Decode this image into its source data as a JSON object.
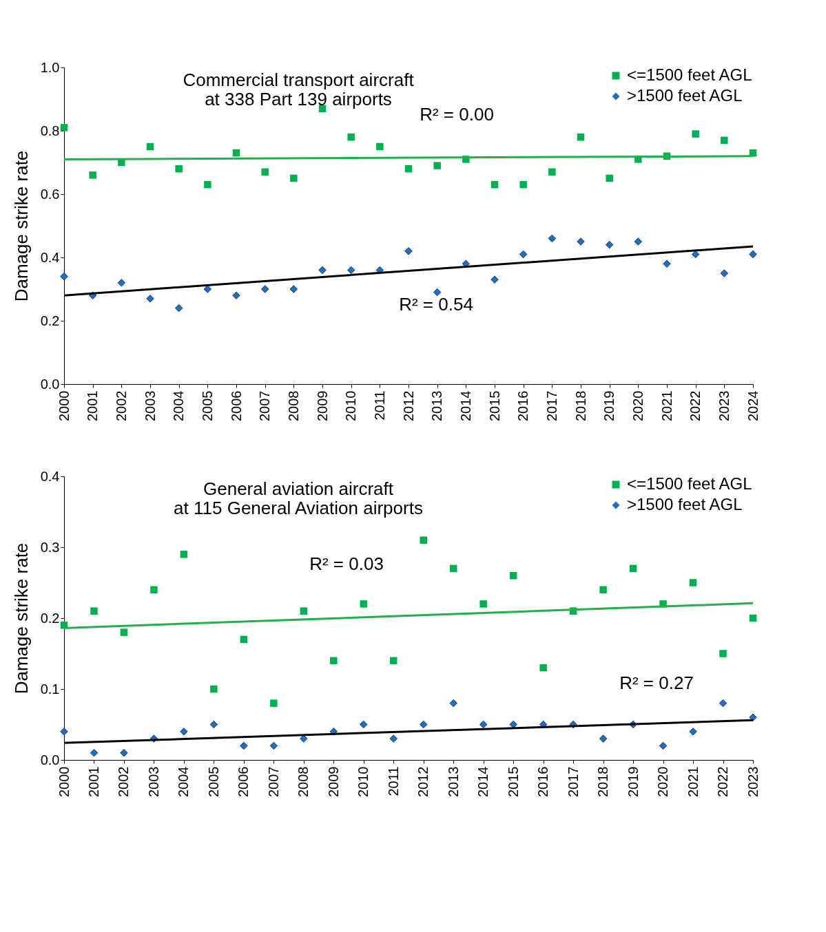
{
  "chart_data": [
    {
      "type": "scatter",
      "title": [
        "Commercial transport aircraft",
        "at 338 Part 139 airports"
      ],
      "ylabel": "Damage strike rate",
      "x": [
        2000,
        2001,
        2002,
        2003,
        2004,
        2005,
        2006,
        2007,
        2008,
        2009,
        2010,
        2011,
        2012,
        2013,
        2014,
        2015,
        2016,
        2017,
        2018,
        2019,
        2020,
        2021,
        2022,
        2023,
        2024
      ],
      "series": [
        {
          "name": "<=1500 feet AGL",
          "color": "#00b050",
          "marker": "square",
          "values": [
            0.81,
            0.66,
            0.7,
            0.75,
            0.68,
            0.63,
            0.73,
            0.67,
            0.65,
            0.87,
            0.78,
            0.75,
            0.68,
            0.69,
            0.71,
            0.63,
            0.63,
            0.67,
            0.78,
            0.65,
            0.71,
            0.72,
            0.79,
            0.77,
            0.73
          ]
        },
        {
          "name": ">1500 feet AGL",
          "color": "#1f6fbf",
          "marker": "diamond",
          "values": [
            0.34,
            0.28,
            0.32,
            0.27,
            0.24,
            0.3,
            0.28,
            0.3,
            0.3,
            0.36,
            0.36,
            0.36,
            0.42,
            0.29,
            0.38,
            0.33,
            0.41,
            0.46,
            0.45,
            0.44,
            0.45,
            0.38,
            0.41,
            0.35,
            0.41
          ]
        },
        {
          "type": "line",
          "color": "#22b14c",
          "x": [
            2000,
            2024
          ],
          "values": [
            0.71,
            0.72
          ]
        },
        {
          "type": "line",
          "color": "#000000",
          "x": [
            2000,
            2024
          ],
          "values": [
            0.28,
            0.435
          ]
        }
      ],
      "xlim": [
        2000,
        2024
      ],
      "xticks": [
        2000,
        2001,
        2002,
        2003,
        2004,
        2005,
        2006,
        2007,
        2008,
        2009,
        2010,
        2011,
        2012,
        2013,
        2014,
        2015,
        2016,
        2017,
        2018,
        2019,
        2020,
        2021,
        2022,
        2023,
        2024
      ],
      "ylim": [
        0,
        1
      ],
      "yticks": [
        {
          "value": 0,
          "label": "0.0"
        },
        {
          "value": 0.2,
          "label": "0.2"
        },
        {
          "value": 0.4,
          "label": "0.4"
        },
        {
          "value": 0.6,
          "label": "0.6"
        },
        {
          "value": 0.8,
          "label": "0.8"
        },
        {
          "value": 1,
          "label": "1.0"
        }
      ],
      "annotations": [
        "R² = 0.00",
        "R² = 0.54"
      ],
      "legend": "top right",
      "grid": false
    },
    {
      "type": "scatter",
      "title": [
        "General aviation aircraft",
        "at 115 General Aviation airports"
      ],
      "ylabel": "Damage strike rate",
      "x": [
        2000,
        2001,
        2002,
        2003,
        2004,
        2005,
        2006,
        2007,
        2008,
        2009,
        2010,
        2011,
        2012,
        2013,
        2014,
        2015,
        2016,
        2017,
        2018,
        2019,
        2020,
        2021,
        2022,
        2023
      ],
      "series": [
        {
          "name": "<=1500 feet AGL",
          "color": "#00b050",
          "marker": "square",
          "values": [
            0.19,
            0.21,
            0.18,
            0.24,
            0.29,
            0.1,
            0.17,
            0.08,
            0.21,
            0.14,
            0.22,
            0.14,
            0.31,
            0.27,
            0.22,
            0.26,
            0.13,
            0.21,
            0.24,
            0.27,
            0.22,
            0.25,
            0.15,
            0.2
          ]
        },
        {
          "name": ">1500 feet AGL",
          "color": "#1f6fbf",
          "marker": "diamond",
          "values": [
            0.04,
            0.01,
            0.01,
            0.03,
            0.04,
            0.05,
            0.02,
            0.02,
            0.03,
            0.04,
            0.05,
            0.03,
            0.05,
            0.08,
            0.05,
            0.05,
            0.05,
            0.05,
            0.03,
            0.05,
            0.02,
            0.04,
            0.08,
            0.06
          ]
        },
        {
          "type": "line",
          "color": "#22b14c",
          "x": [
            2000,
            2023
          ],
          "values": [
            0.186,
            0.221
          ]
        },
        {
          "type": "line",
          "color": "#000000",
          "x": [
            2000,
            2023
          ],
          "values": [
            0.024,
            0.056
          ]
        }
      ],
      "xlim": [
        2000,
        2023
      ],
      "xticks": [
        2000,
        2001,
        2002,
        2003,
        2004,
        2005,
        2006,
        2007,
        2008,
        2009,
        2010,
        2011,
        2012,
        2013,
        2014,
        2015,
        2016,
        2017,
        2018,
        2019,
        2020,
        2021,
        2022,
        2023
      ],
      "ylim": [
        0,
        0.4
      ],
      "yticks": [
        {
          "value": 0,
          "label": "0.0"
        },
        {
          "value": 0.1,
          "label": "0.1"
        },
        {
          "value": 0.2,
          "label": "0.2"
        },
        {
          "value": 0.3,
          "label": "0.3"
        },
        {
          "value": 0.4,
          "label": "0.4"
        }
      ],
      "annotations": [
        "R² = 0.03",
        "R² = 0.27"
      ],
      "legend": "top right",
      "grid": false
    }
  ]
}
